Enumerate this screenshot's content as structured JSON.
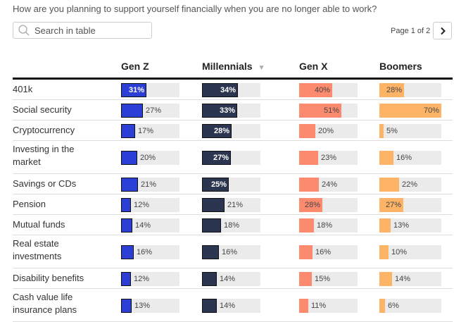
{
  "question": "How are you planning to support yourself financially when you are no longer able to work?",
  "search": {
    "placeholder": "Search in table"
  },
  "pagination": {
    "label": "Page 1 of 2"
  },
  "columns": [
    {
      "name": "Gen Z",
      "color": "#2b3ed6",
      "sorted": false
    },
    {
      "name": "Millennials",
      "color": "#2c3550",
      "sorted": true
    },
    {
      "name": "Gen X",
      "color": "#fb8a6e",
      "sorted": false
    },
    {
      "name": "Boomers",
      "color": "#fdb467",
      "sorted": false
    }
  ],
  "rows": [
    {
      "label": "401k",
      "values": [
        31,
        34,
        40,
        28
      ]
    },
    {
      "label": "Social security",
      "values": [
        27,
        33,
        51,
        70
      ]
    },
    {
      "label": "Cryptocurrency",
      "values": [
        17,
        28,
        20,
        5
      ]
    },
    {
      "label": "Investing in the market",
      "values": [
        20,
        27,
        23,
        16
      ]
    },
    {
      "label": "Savings or CDs",
      "values": [
        21,
        25,
        24,
        22
      ]
    },
    {
      "label": "Pension",
      "values": [
        12,
        21,
        28,
        27
      ]
    },
    {
      "label": "Mutual funds",
      "values": [
        14,
        18,
        18,
        13
      ]
    },
    {
      "label": "Real estate investments",
      "values": [
        16,
        16,
        16,
        10
      ]
    },
    {
      "label": "Disability benefits",
      "values": [
        12,
        14,
        15,
        14
      ]
    },
    {
      "label": "Cash value life insurance plans",
      "values": [
        13,
        14,
        11,
        6
      ]
    }
  ]
}
